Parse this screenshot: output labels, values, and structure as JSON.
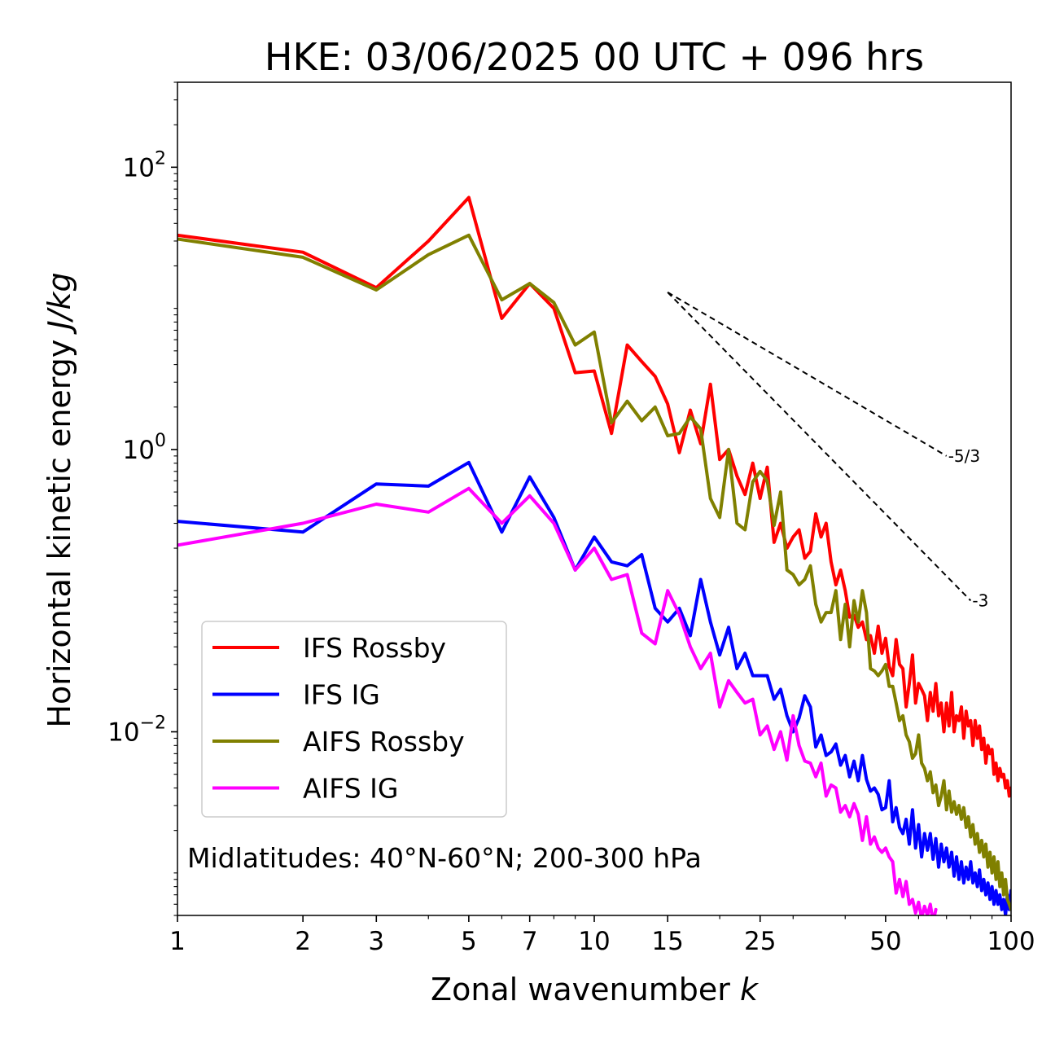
{
  "chart_data": {
    "type": "line",
    "title": "HKE: 03/06/2025 00 UTC + 096 hrs",
    "xlabel": "Zonal wavenumber",
    "xlabel_var": "k",
    "ylabel": "Horizontal kinetic energy",
    "ylabel_unit": "J/kg",
    "x_scale": "log",
    "y_scale": "log",
    "xlim": [
      1,
      100
    ],
    "ylim": [
      0.0005,
      400
    ],
    "x_ticks": [
      {
        "value": 1,
        "label": "1"
      },
      {
        "value": 2,
        "label": "2"
      },
      {
        "value": 3,
        "label": "3"
      },
      {
        "value": 5,
        "label": "5"
      },
      {
        "value": 7,
        "label": "7"
      },
      {
        "value": 10,
        "label": "10"
      },
      {
        "value": 15,
        "label": "15"
      },
      {
        "value": 25,
        "label": "25"
      },
      {
        "value": 50,
        "label": "50"
      },
      {
        "value": 100,
        "label": "100"
      }
    ],
    "y_ticks": [
      {
        "value": 100,
        "base": "10",
        "exp": "2"
      },
      {
        "value": 1,
        "base": "10",
        "exp": "0"
      },
      {
        "value": 0.01,
        "base": "10",
        "exp": "−2"
      }
    ],
    "grid": false,
    "legend_position": "lower-left",
    "annotation": "Midlatitudes: 40°N-60°N; 200-300 hPa",
    "reference_slopes": [
      {
        "label": "-5/3",
        "x": [
          15,
          70
        ],
        "y": [
          13,
          0.9
        ]
      },
      {
        "label": "-3",
        "x": [
          15,
          80
        ],
        "y": [
          13,
          0.085
        ]
      }
    ],
    "series": [
      {
        "name": "IFS Rossby",
        "color": "#ff0000",
        "x": [
          1,
          2,
          3,
          4,
          5,
          6,
          7,
          8,
          9,
          10,
          11,
          12,
          13,
          14,
          15,
          16,
          17,
          18,
          19,
          20,
          21,
          22,
          23,
          24,
          25,
          26,
          27,
          28,
          29,
          30,
          31,
          32,
          33,
          34,
          35,
          36,
          37,
          38,
          39,
          40,
          41,
          42,
          43,
          44,
          45,
          46,
          47,
          48,
          49,
          50,
          51,
          52,
          53,
          54,
          55,
          56,
          57,
          58,
          59,
          60,
          61,
          62,
          63,
          64,
          65,
          66,
          67,
          68,
          69,
          70,
          71,
          72,
          73,
          74,
          75,
          76,
          77,
          78,
          79,
          80,
          81,
          82,
          83,
          84,
          85,
          86,
          87,
          88,
          89,
          90,
          91,
          92,
          93,
          94,
          95,
          96,
          97,
          98,
          99,
          100
        ],
        "y": [
          33,
          25,
          14,
          30,
          61,
          8.5,
          15,
          10,
          3.5,
          3.6,
          1.3,
          5.5,
          4.2,
          3.3,
          2.1,
          0.95,
          1.9,
          1.1,
          2.9,
          0.85,
          1,
          0.65,
          0.48,
          0.8,
          0.45,
          0.75,
          0.22,
          0.3,
          0.2,
          0.24,
          0.27,
          0.17,
          0.19,
          0.35,
          0.24,
          0.3,
          0.16,
          0.11,
          0.14,
          0.1,
          0.065,
          0.067,
          0.055,
          0.06,
          0.045,
          0.048,
          0.036,
          0.056,
          0.036,
          0.046,
          0.029,
          0.025,
          0.045,
          0.03,
          0.028,
          0.015,
          0.022,
          0.035,
          0.016,
          0.022,
          0.02,
          0.018,
          0.012,
          0.019,
          0.014,
          0.022,
          0.013,
          0.016,
          0.01,
          0.016,
          0.011,
          0.019,
          0.01,
          0.013,
          0.012,
          0.015,
          0.009,
          0.014,
          0.011,
          0.012,
          0.008,
          0.012,
          0.009,
          0.011,
          0.0075,
          0.009,
          0.006,
          0.008,
          0.007,
          0.0075,
          0.005,
          0.006,
          0.0045,
          0.0055,
          0.0048,
          0.005,
          0.004,
          0.0045,
          0.0035,
          0.004
        ]
      },
      {
        "name": "IFS IG",
        "color": "#0000ff",
        "x": [
          1,
          2,
          3,
          4,
          5,
          6,
          7,
          8,
          9,
          10,
          11,
          12,
          13,
          14,
          15,
          16,
          17,
          18,
          19,
          20,
          21,
          22,
          23,
          24,
          25,
          26,
          27,
          28,
          29,
          30,
          31,
          32,
          33,
          34,
          35,
          36,
          37,
          38,
          39,
          40,
          41,
          42,
          43,
          44,
          45,
          46,
          47,
          48,
          49,
          50,
          51,
          52,
          53,
          54,
          55,
          56,
          57,
          58,
          59,
          60,
          61,
          62,
          63,
          64,
          65,
          66,
          67,
          68,
          69,
          70,
          71,
          72,
          73,
          74,
          75,
          76,
          77,
          78,
          79,
          80,
          81,
          82,
          83,
          84,
          85,
          86,
          87,
          88,
          89,
          90,
          91,
          92,
          93,
          94,
          95,
          96,
          97,
          98,
          99,
          100
        ],
        "y": [
          0.31,
          0.26,
          0.57,
          0.55,
          0.81,
          0.26,
          0.64,
          0.33,
          0.14,
          0.24,
          0.16,
          0.15,
          0.18,
          0.075,
          0.06,
          0.075,
          0.048,
          0.12,
          0.06,
          0.035,
          0.055,
          0.028,
          0.036,
          0.025,
          0.025,
          0.025,
          0.017,
          0.02,
          0.013,
          0.01,
          0.0125,
          0.018,
          0.015,
          0.0078,
          0.0095,
          0.0068,
          0.0072,
          0.0082,
          0.0058,
          0.0068,
          0.0048,
          0.0062,
          0.0045,
          0.0068,
          0.0046,
          0.0038,
          0.004,
          0.0036,
          0.0028,
          0.0029,
          0.0045,
          0.0023,
          0.0029,
          0.0021,
          0.0019,
          0.0024,
          0.0016,
          0.0028,
          0.0015,
          0.0022,
          0.0013,
          0.0019,
          0.00145,
          0.0019,
          0.00125,
          0.00175,
          0.0011,
          0.0016,
          0.0012,
          0.0015,
          0.0011,
          0.0014,
          0.00095,
          0.0013,
          0.0009,
          0.0012,
          0.00085,
          0.0011,
          0.0009,
          0.0012,
          0.00085,
          0.001,
          0.0008,
          0.00105,
          0.00075,
          0.0009,
          0.0007,
          0.00085,
          0.00065,
          0.0008,
          0.0006,
          0.00075,
          0.0006,
          0.0007,
          0.00055,
          0.00065,
          0.0005,
          0.0007,
          0.00055,
          0.00075
        ]
      },
      {
        "name": "AIFS Rossby",
        "color": "#808000",
        "x": [
          1,
          2,
          3,
          4,
          5,
          6,
          7,
          8,
          9,
          10,
          11,
          12,
          13,
          14,
          15,
          16,
          17,
          18,
          19,
          20,
          21,
          22,
          23,
          24,
          25,
          26,
          27,
          28,
          29,
          30,
          31,
          32,
          33,
          34,
          35,
          36,
          37,
          38,
          39,
          40,
          41,
          42,
          43,
          44,
          45,
          46,
          47,
          48,
          49,
          50,
          51,
          52,
          53,
          54,
          55,
          56,
          57,
          58,
          59,
          60,
          61,
          62,
          63,
          64,
          65,
          66,
          67,
          68,
          69,
          70,
          71,
          72,
          73,
          74,
          75,
          76,
          77,
          78,
          79,
          80,
          81,
          82,
          83,
          84,
          85,
          86,
          87,
          88,
          89,
          90,
          91,
          92,
          93,
          94,
          95,
          96,
          97,
          98,
          99,
          100
        ],
        "y": [
          31,
          23,
          13.5,
          24,
          33,
          11.5,
          15,
          11,
          5.5,
          6.8,
          1.55,
          2.2,
          1.6,
          2,
          1.25,
          1.3,
          1.7,
          1.4,
          0.45,
          0.33,
          1,
          0.3,
          0.27,
          0.59,
          0.7,
          0.6,
          0.29,
          0.5,
          0.14,
          0.13,
          0.11,
          0.12,
          0.15,
          0.08,
          0.06,
          0.07,
          0.07,
          0.1,
          0.045,
          0.08,
          0.04,
          0.085,
          0.06,
          0.1,
          0.07,
          0.028,
          0.027,
          0.025,
          0.027,
          0.03,
          0.021,
          0.021,
          0.016,
          0.012,
          0.013,
          0.0095,
          0.0085,
          0.0065,
          0.007,
          0.0095,
          0.006,
          0.0055,
          0.0045,
          0.0052,
          0.0037,
          0.0042,
          0.003,
          0.0035,
          0.0045,
          0.0028,
          0.0038,
          0.0027,
          0.0032,
          0.0026,
          0.003,
          0.0024,
          0.0029,
          0.0021,
          0.0025,
          0.0018,
          0.0022,
          0.0016,
          0.0019,
          0.0014,
          0.0017,
          0.0013,
          0.0016,
          0.0011,
          0.0014,
          0.001,
          0.0013,
          0.0009,
          0.0012,
          0.0008,
          0.001,
          0.0007,
          0.0009,
          0.00065,
          0.0006,
          0.00055
        ]
      },
      {
        "name": "AIFS IG",
        "color": "#ff00ff",
        "x": [
          1,
          2,
          3,
          4,
          5,
          6,
          7,
          8,
          9,
          10,
          11,
          12,
          13,
          14,
          15,
          16,
          17,
          18,
          19,
          20,
          21,
          22,
          23,
          24,
          25,
          26,
          27,
          28,
          29,
          30,
          31,
          32,
          33,
          34,
          35,
          36,
          37,
          38,
          39,
          40,
          41,
          42,
          43,
          44,
          45,
          46,
          47,
          48,
          49,
          50,
          51,
          52,
          53,
          54,
          55,
          56,
          57,
          58,
          59,
          60,
          61,
          62,
          63,
          64,
          65,
          66
        ],
        "y": [
          0.21,
          0.3,
          0.41,
          0.36,
          0.53,
          0.3,
          0.47,
          0.3,
          0.14,
          0.2,
          0.12,
          0.13,
          0.05,
          0.042,
          0.1,
          0.068,
          0.04,
          0.028,
          0.036,
          0.015,
          0.023,
          0.019,
          0.016,
          0.017,
          0.0095,
          0.011,
          0.0075,
          0.01,
          0.0063,
          0.013,
          0.008,
          0.0062,
          0.006,
          0.0048,
          0.006,
          0.0035,
          0.0042,
          0.004,
          0.0027,
          0.003,
          0.0025,
          0.0031,
          0.0026,
          0.0017,
          0.0025,
          0.0016,
          0.0018,
          0.0015,
          0.0014,
          0.0015,
          0.0013,
          0.0012,
          0.00072,
          0.0009,
          0.00068,
          0.00087,
          0.0006,
          0.00065,
          0.00052,
          0.00062,
          0.00048,
          0.00058,
          0.0005,
          0.0006,
          0.00045,
          0.00055
        ]
      }
    ]
  }
}
